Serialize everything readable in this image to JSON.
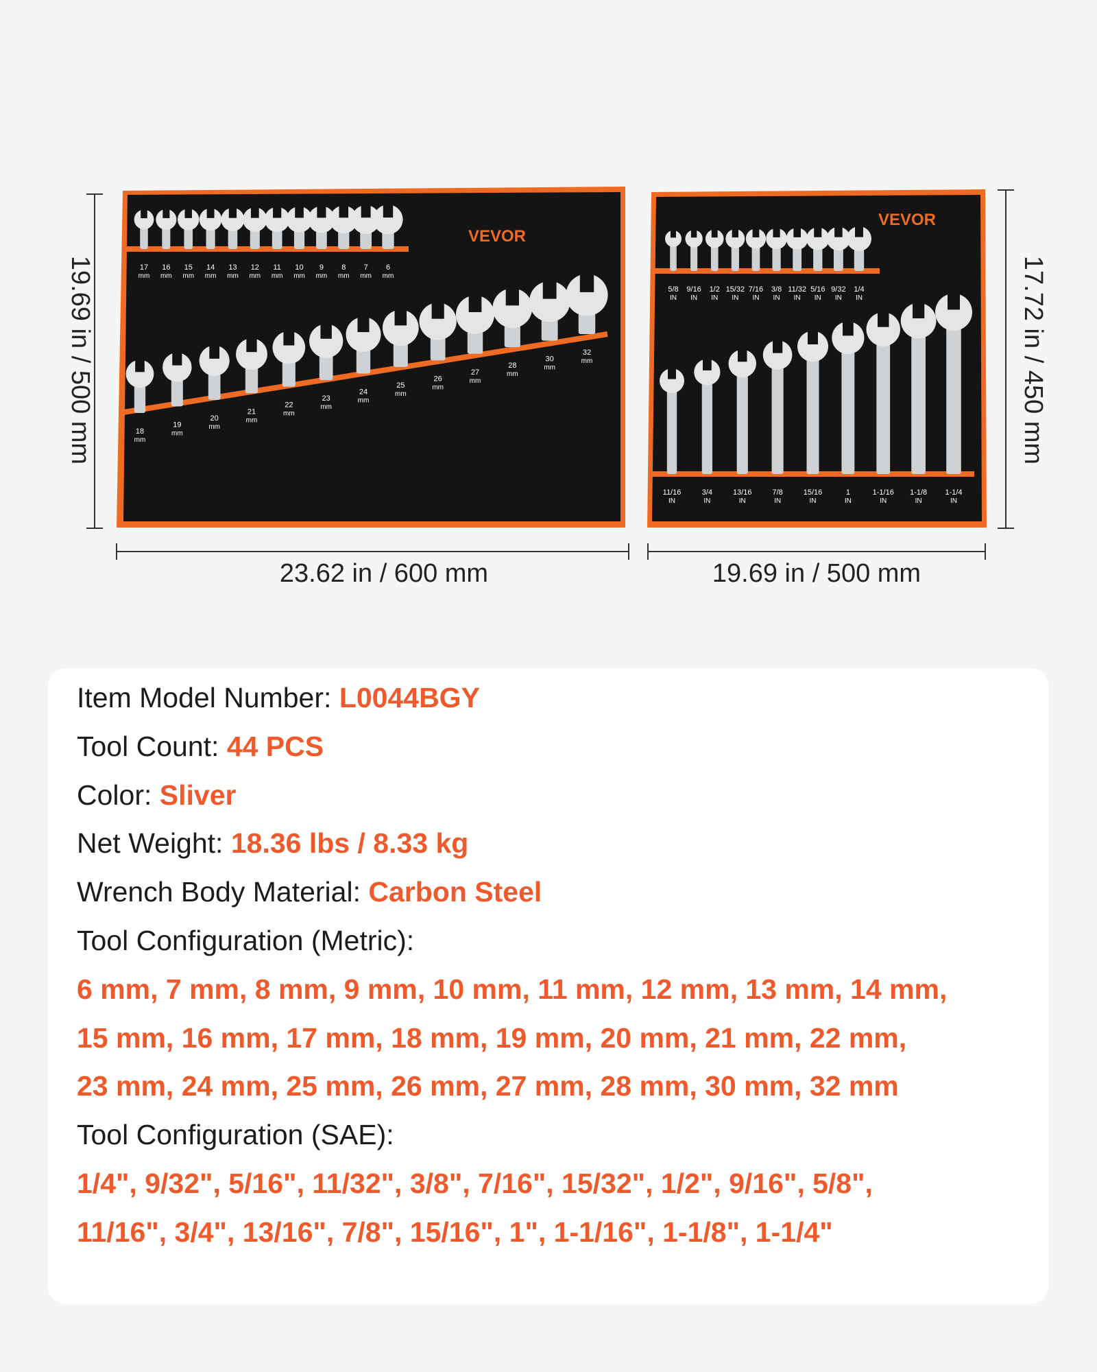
{
  "pouches": [
    {
      "brand": "VEVOR",
      "unit": "mm",
      "top_labels": [
        "17",
        "16",
        "15",
        "14",
        "13",
        "12",
        "11",
        "10",
        "9",
        "8",
        "7",
        "6"
      ],
      "bottom_labels": [
        "18",
        "19",
        "20",
        "21",
        "22",
        "23",
        "24",
        "25",
        "26",
        "27",
        "28",
        "30",
        "32"
      ],
      "height_label": "19.69 in / 500 mm",
      "width_label": "23.62 in / 600 mm"
    },
    {
      "brand": "VEVOR",
      "unit": "IN",
      "top_labels": [
        "5/8",
        "9/16",
        "1/2",
        "15/32",
        "7/16",
        "3/8",
        "11/32",
        "5/16",
        "9/32",
        "1/4"
      ],
      "bottom_labels": [
        "11/16",
        "3/4",
        "13/16",
        "7/8",
        "15/16",
        "1",
        "1-1/16",
        "1-1/8",
        "1-1/4"
      ],
      "height_label": "17.72 in / 450 mm",
      "width_label": "19.69 in / 500 mm"
    }
  ],
  "specs": [
    {
      "label": "Item Model Number:",
      "value": "L0044BGY"
    },
    {
      "label": "Tool Count:",
      "value": "44 PCS"
    },
    {
      "label": "Color:",
      "value": "Sliver"
    },
    {
      "label": "Net Weight:",
      "value": "18.36 lbs / 8.33 kg"
    },
    {
      "label": "Wrench Body Material:",
      "value": "Carbon Steel"
    }
  ],
  "configurations": [
    {
      "label": "Tool Configuration (Metric):",
      "lines": [
        "6 mm, 7 mm, 8 mm, 9 mm, 10 mm, 11 mm, 12 mm, 13 mm, 14 mm,",
        "15 mm, 16 mm, 17 mm, 18 mm, 19 mm, 20 mm, 21 mm, 22 mm,",
        "23 mm, 24 mm, 25 mm, 26 mm, 27 mm, 28 mm, 30 mm, 32 mm"
      ]
    },
    {
      "label": "Tool Configuration (SAE):",
      "lines": [
        "1/4\", 9/32\", 5/16\", 11/32\", 3/8\", 7/16\", 15/32\", 1/2\", 9/16\", 5/8\",",
        "11/16\", 3/4\", 13/16\", 7/8\", 15/16\", 1\", 1-1/16\", 1-1/8\", 1-1/4\""
      ]
    }
  ]
}
